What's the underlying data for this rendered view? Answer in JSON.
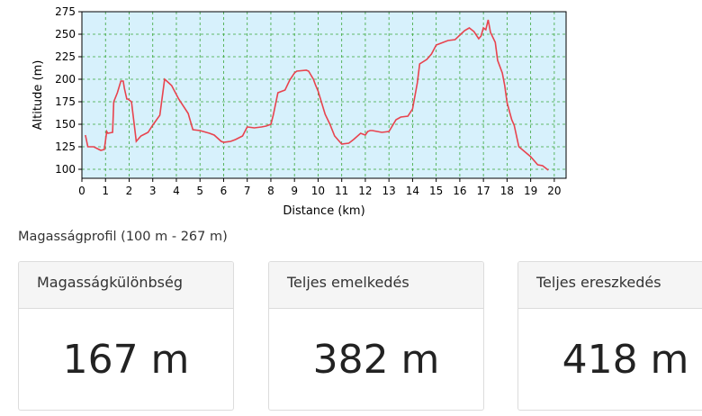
{
  "chart_data": {
    "type": "line",
    "xlabel": "Distance (km)",
    "ylabel": "Altitude (m)",
    "xlim": [
      0,
      20.5
    ],
    "ylim": [
      90,
      275
    ],
    "xticks": [
      0,
      1,
      2,
      3,
      4,
      5,
      6,
      7,
      8,
      9,
      10,
      11,
      12,
      13,
      14,
      15,
      16,
      17,
      18,
      19,
      20
    ],
    "yticks": [
      100,
      125,
      150,
      175,
      200,
      225,
      250,
      275
    ],
    "grid": true,
    "line_color": "#e8434e",
    "background_color": "#d7f1fc",
    "grid_color": "#3aa63a",
    "series": [
      {
        "x": [
          0.15,
          0.25,
          0.5,
          0.8,
          0.95,
          1.05,
          1.1,
          1.3,
          1.35,
          1.5,
          1.65,
          1.75,
          1.8,
          1.9,
          1.95,
          2.1,
          2.3,
          2.5,
          2.8,
          3.0,
          3.3,
          3.5,
          3.55,
          3.8,
          4.1,
          4.5,
          4.7,
          5.0,
          5.4,
          5.6,
          5.9,
          6.0,
          6.3,
          6.5,
          6.8,
          7.0,
          7.3,
          7.6,
          7.8,
          8.0,
          8.1,
          8.3,
          8.6,
          8.8,
          9.0,
          9.1,
          9.5,
          9.6,
          9.8,
          9.9,
          10.0,
          10.3,
          10.5,
          10.7,
          11.0,
          11.3,
          11.5,
          11.8,
          12.0,
          12.1,
          12.2,
          12.3,
          12.5,
          12.7,
          13.0,
          13.3,
          13.5,
          13.8,
          14.0,
          14.2,
          14.3,
          14.6,
          14.8,
          15.0,
          15.2,
          15.5,
          15.8,
          16.0,
          16.2,
          16.4,
          16.6,
          16.8,
          16.9,
          17.0,
          17.1,
          17.2,
          17.3,
          17.5,
          17.6,
          17.8,
          17.9,
          18.0,
          18.2,
          18.3,
          18.5,
          19.0,
          19.3,
          19.5,
          19.75
        ],
        "y": [
          138,
          125,
          125,
          121,
          122,
          142,
          140,
          141,
          175,
          185,
          198,
          198,
          190,
          178,
          178,
          175,
          131,
          137,
          141,
          149,
          160,
          200,
          199,
          193,
          178,
          162,
          144,
          143,
          140,
          138,
          131,
          130,
          131,
          133,
          137,
          147,
          146,
          147,
          148,
          150,
          160,
          185,
          188,
          199,
          207,
          209,
          210,
          209,
          200,
          193,
          187,
          161,
          150,
          137,
          128,
          129,
          133,
          140,
          138,
          142,
          143,
          143,
          142,
          141,
          142,
          155,
          158,
          159,
          167,
          196,
          217,
          222,
          228,
          238,
          240,
          243,
          244,
          249,
          254,
          257,
          253,
          245,
          248,
          257,
          255,
          266,
          252,
          241,
          221,
          207,
          193,
          174,
          155,
          149,
          125,
          114,
          105,
          104,
          99
        ]
      }
    ]
  },
  "profile_caption": "Magasságprofil (100 m - 267 m)",
  "stats": [
    {
      "label": "Magasságkülönbség",
      "value": "167 m"
    },
    {
      "label": "Teljes emelkedés",
      "value": "382 m"
    },
    {
      "label": "Teljes ereszkedés",
      "value": "418 m"
    }
  ]
}
